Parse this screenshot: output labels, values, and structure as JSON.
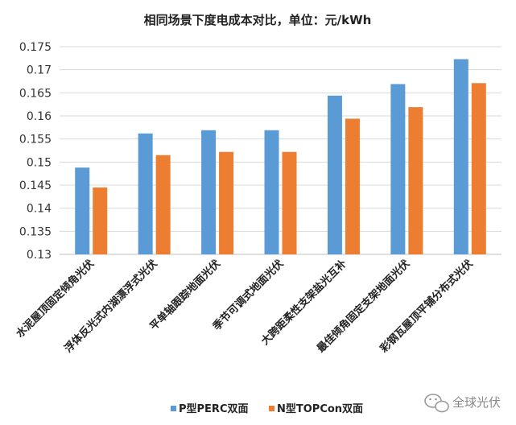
{
  "chart_data": {
    "type": "bar",
    "title": "相同场景下度电成本对比，单位：元/kWh",
    "categories": [
      "水泥屋顶固定倾角光伏",
      "浮体反光式内湖漂浮式光伏",
      "平单轴跟踪地面光伏",
      "季节可调式地面光伏",
      "大跨距柔性支架盐光互补",
      "最佳倾角固定支架地面光伏",
      "彩钢瓦屋顶平铺分布式光伏"
    ],
    "series": [
      {
        "name": "P型PERC双面",
        "color": "#5b9bd5",
        "values": [
          0.1488,
          0.1562,
          0.1569,
          0.1569,
          0.1644,
          0.1669,
          0.1723
        ]
      },
      {
        "name": "N型TOPCon双面",
        "color": "#ed7d31",
        "values": [
          0.1445,
          0.1515,
          0.1522,
          0.1522,
          0.1594,
          0.1619,
          0.1671
        ]
      }
    ],
    "ylim": [
      0.13,
      0.175
    ],
    "yticks": [
      "0.13",
      "0.135",
      "0.14",
      "0.145",
      "0.15",
      "0.155",
      "0.16",
      "0.165",
      "0.17",
      "0.175"
    ],
    "grid": true,
    "legend_position": "bottom"
  },
  "watermark": {
    "text": "全球光伏"
  },
  "colors": {
    "grid": "#d9d9d9",
    "axis": "#bfbfbf"
  }
}
